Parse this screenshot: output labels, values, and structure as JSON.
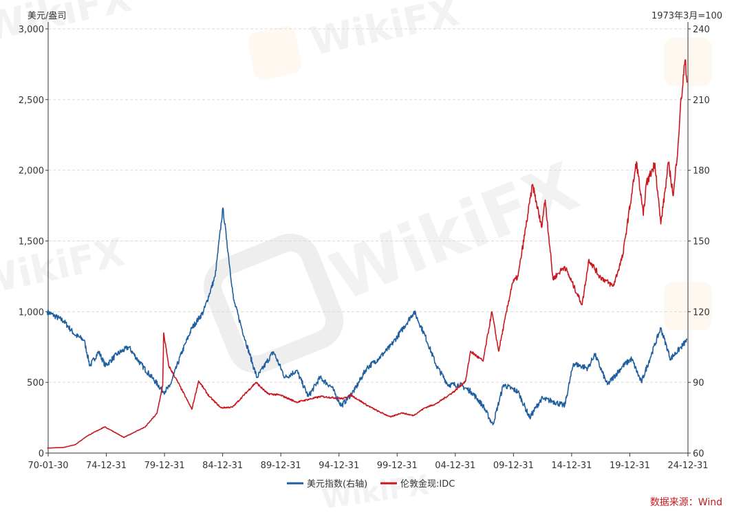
{
  "chart_data": {
    "type": "line",
    "title": "",
    "left_axis_unit": "美元/盎司",
    "right_axis_unit": "1973年3月=100",
    "x_tick_labels": [
      "70-01-30",
      "74-12-31",
      "79-12-31",
      "84-12-31",
      "89-12-31",
      "94-12-31",
      "99-12-31",
      "04-12-31",
      "09-12-31",
      "14-12-31",
      "19-12-31",
      "24-12-31"
    ],
    "ylim_left": [
      0,
      3000
    ],
    "ylim_right": [
      60,
      240
    ],
    "left_tick_labels": [
      "0",
      "500",
      "1,000",
      "1,500",
      "2,000",
      "2,500",
      "3,000"
    ],
    "right_tick_labels": [
      "60",
      "90",
      "120",
      "150",
      "180",
      "210",
      "240"
    ],
    "grid": "horizontal-dashed",
    "legend_position": "bottom-center",
    "series": [
      {
        "name": "美元指数(右轴)",
        "axis": "right",
        "color": "#1f5fa0",
        "points": [
          [
            "1970-01",
            120
          ],
          [
            "1971-06",
            116
          ],
          [
            "1972-06",
            110
          ],
          [
            "1973-03",
            108
          ],
          [
            "1973-09",
            97
          ],
          [
            "1974-06",
            103
          ],
          [
            "1975-01",
            97
          ],
          [
            "1976-01",
            102
          ],
          [
            "1977-01",
            105
          ],
          [
            "1978-01",
            98
          ],
          [
            "1979-01",
            92
          ],
          [
            "1980-01",
            86
          ],
          [
            "1980-07",
            88
          ],
          [
            "1981-07",
            102
          ],
          [
            "1982-06",
            113
          ],
          [
            "1983-06",
            120
          ],
          [
            "1984-06",
            135
          ],
          [
            "1985-02",
            164
          ],
          [
            "1985-06",
            150
          ],
          [
            "1986-01",
            125
          ],
          [
            "1987-01",
            108
          ],
          [
            "1988-01",
            92
          ],
          [
            "1989-06",
            103
          ],
          [
            "1990-06",
            92
          ],
          [
            "1991-06",
            95
          ],
          [
            "1992-06",
            84
          ],
          [
            "1993-06",
            92
          ],
          [
            "1994-06",
            88
          ],
          [
            "1995-04",
            80
          ],
          [
            "1996-06",
            87
          ],
          [
            "1997-06",
            96
          ],
          [
            "1998-06",
            100
          ],
          [
            "1999-06",
            105
          ],
          [
            "2000-06",
            112
          ],
          [
            "2001-07",
            120
          ],
          [
            "2002-06",
            110
          ],
          [
            "2003-06",
            97
          ],
          [
            "2004-06",
            89
          ],
          [
            "2005-06",
            89
          ],
          [
            "2006-06",
            86
          ],
          [
            "2007-06",
            80
          ],
          [
            "2008-04",
            72
          ],
          [
            "2009-03",
            89
          ],
          [
            "2010-06",
            86
          ],
          [
            "2011-06",
            75
          ],
          [
            "2012-06",
            83
          ],
          [
            "2013-06",
            82
          ],
          [
            "2014-06",
            80
          ],
          [
            "2015-03",
            98
          ],
          [
            "2016-06",
            96
          ],
          [
            "2017-01",
            102
          ],
          [
            "2018-02",
            89
          ],
          [
            "2019-06",
            97
          ],
          [
            "2020-03",
            100
          ],
          [
            "2021-01",
            90
          ],
          [
            "2022-09",
            113
          ],
          [
            "2023-07",
            100
          ],
          [
            "2024-06",
            105
          ],
          [
            "2024-12",
            108
          ]
        ]
      },
      {
        "name": "伦敦金现:IDC",
        "axis": "left",
        "color": "#c8191f",
        "points": [
          [
            "1970-01",
            35
          ],
          [
            "1971-06",
            40
          ],
          [
            "1972-06",
            60
          ],
          [
            "1973-06",
            120
          ],
          [
            "1974-12",
            185
          ],
          [
            "1975-06",
            165
          ],
          [
            "1976-08",
            110
          ],
          [
            "1977-06",
            145
          ],
          [
            "1978-06",
            185
          ],
          [
            "1979-06",
            280
          ],
          [
            "1979-12",
            480
          ],
          [
            "1980-01",
            850
          ],
          [
            "1980-06",
            620
          ],
          [
            "1981-06",
            470
          ],
          [
            "1982-06",
            310
          ],
          [
            "1983-01",
            510
          ],
          [
            "1983-12",
            400
          ],
          [
            "1984-12",
            320
          ],
          [
            "1985-12",
            325
          ],
          [
            "1987-12",
            500
          ],
          [
            "1988-12",
            420
          ],
          [
            "1990-01",
            410
          ],
          [
            "1991-06",
            360
          ],
          [
            "1993-07",
            400
          ],
          [
            "1995-06",
            385
          ],
          [
            "1996-02",
            410
          ],
          [
            "1997-06",
            340
          ],
          [
            "1998-06",
            295
          ],
          [
            "1999-07",
            255
          ],
          [
            "2000-06",
            285
          ],
          [
            "2001-06",
            265
          ],
          [
            "2002-06",
            320
          ],
          [
            "2003-06",
            350
          ],
          [
            "2004-12",
            435
          ],
          [
            "2005-12",
            510
          ],
          [
            "2006-05",
            720
          ],
          [
            "2007-06",
            650
          ],
          [
            "2008-03",
            1000
          ],
          [
            "2008-10",
            720
          ],
          [
            "2009-12",
            1200
          ],
          [
            "2010-06",
            1250
          ],
          [
            "2011-09",
            1900
          ],
          [
            "2012-06",
            1600
          ],
          [
            "2012-10",
            1790
          ],
          [
            "2013-06",
            1230
          ],
          [
            "2014-06",
            1320
          ],
          [
            "2015-12",
            1050
          ],
          [
            "2016-07",
            1370
          ],
          [
            "2017-06",
            1250
          ],
          [
            "2018-08",
            1180
          ],
          [
            "2019-06",
            1400
          ],
          [
            "2019-09",
            1550
          ],
          [
            "2020-08",
            2060
          ],
          [
            "2021-03",
            1680
          ],
          [
            "2021-06",
            1900
          ],
          [
            "2022-03",
            2050
          ],
          [
            "2022-09",
            1620
          ],
          [
            "2023-05",
            2050
          ],
          [
            "2023-10",
            1820
          ],
          [
            "2024-03",
            2200
          ],
          [
            "2024-05",
            2420
          ],
          [
            "2024-10",
            2780
          ],
          [
            "2024-12",
            2620
          ]
        ]
      }
    ]
  },
  "watermark": {
    "text": "WikiFX",
    "color": "#9a9a9a",
    "logo_color": "#f3c98b"
  },
  "source_note": "数据来源：Wind"
}
